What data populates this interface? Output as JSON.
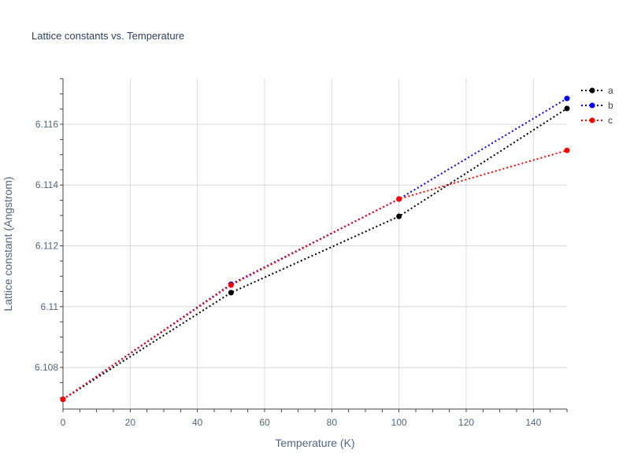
{
  "chart_data": {
    "type": "line",
    "title": "Lattice constants vs. Temperature",
    "xlabel": "Temperature (K)",
    "ylabel": "Lattice constant (Angstrom)",
    "xlim": [
      0,
      150
    ],
    "ylim": [
      6.10663,
      6.1175
    ],
    "x_ticks": [
      0,
      20,
      40,
      60,
      80,
      100,
      120,
      140
    ],
    "x_tick_labels": [
      "0",
      "20",
      "40",
      "60",
      "80",
      "100",
      "120",
      "140"
    ],
    "y_ticks": [
      6.108,
      6.11,
      6.112,
      6.114,
      6.116
    ],
    "y_tick_labels": [
      "6.108",
      "6.11",
      "6.112",
      "6.114",
      "6.116"
    ],
    "grid": true,
    "legend_position": "top-right",
    "line_style": "dotted",
    "series": [
      {
        "name": "a",
        "color": "#000000",
        "x": [
          0,
          50,
          100,
          150
        ],
        "y": [
          6.10695,
          6.11046,
          6.11297,
          6.11652
        ]
      },
      {
        "name": "b",
        "color": "#0000ff",
        "x": [
          0,
          50,
          100,
          150
        ],
        "y": [
          6.10695,
          6.11074,
          6.11354,
          6.11685
        ]
      },
      {
        "name": "c",
        "color": "#ff0000",
        "x": [
          0,
          50,
          100,
          150
        ],
        "y": [
          6.10695,
          6.11071,
          6.11354,
          6.11514
        ]
      }
    ]
  }
}
